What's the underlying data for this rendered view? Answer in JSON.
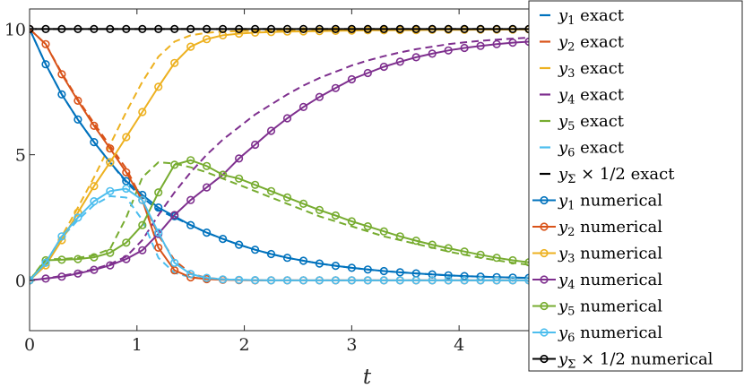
{
  "chart_data": {
    "type": "line",
    "title": "",
    "xlabel": "t",
    "ylabel": "",
    "xlim": [
      0,
      4.7
    ],
    "ylim": [
      -2,
      10.8
    ],
    "xticks": [
      0,
      1,
      2,
      3,
      4
    ],
    "xtick_labels": [
      "0",
      "1",
      "2",
      "3",
      "4"
    ],
    "yticks": [
      0,
      5,
      10
    ],
    "ytick_labels": [
      "0",
      "5",
      "10"
    ],
    "grid": false,
    "legend_position": "right",
    "legend": [
      {
        "symbol": "y",
        "sub": "1",
        "suffix": " exact",
        "color": "#0072BD",
        "style": "dashed"
      },
      {
        "symbol": "y",
        "sub": "2",
        "suffix": " exact",
        "color": "#D95319",
        "style": "dashed"
      },
      {
        "symbol": "y",
        "sub": "3",
        "suffix": " exact",
        "color": "#EDB120",
        "style": "dashed"
      },
      {
        "symbol": "y",
        "sub": "4",
        "suffix": " exact",
        "color": "#7E2F8E",
        "style": "dashed"
      },
      {
        "symbol": "y",
        "sub": "5",
        "suffix": " exact",
        "color": "#77AC30",
        "style": "dashed"
      },
      {
        "symbol": "y",
        "sub": "6",
        "suffix": " exact",
        "color": "#4DBEEE",
        "style": "dashed"
      },
      {
        "symbol": "y",
        "sub": "Σ",
        "suffix": " × 1/2 exact",
        "color": "#000000",
        "style": "dashed"
      },
      {
        "symbol": "y",
        "sub": "1",
        "suffix": " numerical",
        "color": "#0072BD",
        "style": "marker"
      },
      {
        "symbol": "y",
        "sub": "2",
        "suffix": " numerical",
        "color": "#D95319",
        "style": "marker"
      },
      {
        "symbol": "y",
        "sub": "3",
        "suffix": " numerical",
        "color": "#EDB120",
        "style": "marker"
      },
      {
        "symbol": "y",
        "sub": "4",
        "suffix": " numerical",
        "color": "#7E2F8E",
        "style": "marker"
      },
      {
        "symbol": "y",
        "sub": "5",
        "suffix": " numerical",
        "color": "#77AC30",
        "style": "marker"
      },
      {
        "symbol": "y",
        "sub": "6",
        "suffix": " numerical",
        "color": "#4DBEEE",
        "style": "marker"
      },
      {
        "symbol": "y",
        "sub": "Σ",
        "suffix": " × 1/2 numerical",
        "color": "#000000",
        "style": "marker"
      }
    ],
    "x": [
      0.0,
      0.15,
      0.3,
      0.45,
      0.6,
      0.75,
      0.9,
      1.05,
      1.2,
      1.35,
      1.5,
      1.65,
      1.8,
      1.95,
      2.1,
      2.25,
      2.4,
      2.55,
      2.7,
      2.85,
      3.0,
      3.15,
      3.3,
      3.45,
      3.6,
      3.75,
      3.9,
      4.05,
      4.2,
      4.35,
      4.5,
      4.65
    ],
    "series": [
      {
        "name": "y1 exact",
        "color": "#0072BD",
        "style": "dashed",
        "values": [
          10.0,
          8.6,
          7.4,
          6.4,
          5.5,
          4.7,
          3.9,
          3.3,
          2.8,
          2.5,
          2.2,
          1.9,
          1.65,
          1.42,
          1.22,
          1.05,
          0.9,
          0.78,
          0.67,
          0.58,
          0.5,
          0.43,
          0.37,
          0.32,
          0.28,
          0.24,
          0.2,
          0.17,
          0.15,
          0.13,
          0.11,
          0.1
        ]
      },
      {
        "name": "y2 exact",
        "color": "#D95319",
        "style": "dashed",
        "values": [
          10.0,
          9.4,
          8.25,
          7.2,
          6.25,
          5.35,
          4.45,
          3.2,
          1.8,
          0.8,
          0.28,
          0.1,
          0.05,
          0.02,
          0.01,
          0.0,
          0.0,
          0.0,
          0.0,
          0.0,
          0.0,
          0.0,
          0.0,
          0.0,
          0.0,
          0.0,
          0.0,
          0.0,
          0.0,
          0.0,
          0.0,
          0.0
        ]
      },
      {
        "name": "y3 exact",
        "color": "#EDB120",
        "style": "dashed",
        "values": [
          0.0,
          0.7,
          1.75,
          2.9,
          4.1,
          5.4,
          6.7,
          7.9,
          8.9,
          9.5,
          9.75,
          9.85,
          9.9,
          9.92,
          9.93,
          9.94,
          9.95,
          9.95,
          9.96,
          9.96,
          9.97,
          9.97,
          9.97,
          9.98,
          9.98,
          9.98,
          9.98,
          9.99,
          9.99,
          9.99,
          9.99,
          9.99
        ]
      },
      {
        "name": "y4 exact",
        "color": "#7E2F8E",
        "style": "dashed",
        "values": [
          0.0,
          0.08,
          0.18,
          0.3,
          0.45,
          0.65,
          0.95,
          1.6,
          2.6,
          3.5,
          4.3,
          5.0,
          5.6,
          6.1,
          6.6,
          7.0,
          7.4,
          7.75,
          8.05,
          8.3,
          8.55,
          8.75,
          8.92,
          9.07,
          9.2,
          9.3,
          9.4,
          9.47,
          9.53,
          9.58,
          9.62,
          9.66
        ]
      },
      {
        "name": "y5 exact",
        "color": "#77AC30",
        "style": "dashed",
        "values": [
          0.0,
          0.85,
          0.85,
          0.9,
          1.0,
          1.25,
          2.5,
          4.1,
          4.7,
          4.65,
          4.5,
          4.3,
          4.05,
          3.8,
          3.55,
          3.3,
          3.05,
          2.8,
          2.55,
          2.35,
          2.15,
          1.95,
          1.75,
          1.6,
          1.45,
          1.3,
          1.15,
          1.02,
          0.9,
          0.8,
          0.7,
          0.62
        ]
      },
      {
        "name": "y6 exact",
        "color": "#4DBEEE",
        "style": "dashed",
        "values": [
          0.0,
          0.7,
          1.7,
          2.4,
          3.0,
          3.35,
          3.3,
          2.4,
          0.9,
          0.3,
          0.12,
          0.06,
          0.03,
          0.02,
          0.01,
          0.0,
          0.0,
          0.0,
          0.0,
          0.0,
          0.0,
          0.0,
          0.0,
          0.0,
          0.0,
          0.0,
          0.0,
          0.0,
          0.0,
          0.0,
          0.0,
          0.0
        ]
      },
      {
        "name": "ySigma x 1/2 exact",
        "color": "#000000",
        "style": "dashed",
        "values": [
          10.0,
          10.0,
          10.0,
          10.0,
          10.0,
          10.0,
          10.0,
          10.0,
          10.0,
          10.0,
          10.0,
          10.0,
          10.0,
          10.0,
          10.0,
          10.0,
          10.0,
          10.0,
          10.0,
          10.0,
          10.0,
          10.0,
          10.0,
          10.0,
          10.0,
          10.0,
          10.0,
          10.0,
          10.0,
          10.0,
          10.0,
          10.0
        ]
      },
      {
        "name": "y1 numerical",
        "color": "#0072BD",
        "style": "marker",
        "values": [
          10.0,
          8.6,
          7.4,
          6.4,
          5.5,
          4.7,
          3.95,
          3.4,
          2.9,
          2.55,
          2.2,
          1.9,
          1.65,
          1.42,
          1.22,
          1.05,
          0.9,
          0.78,
          0.67,
          0.58,
          0.5,
          0.43,
          0.37,
          0.32,
          0.28,
          0.24,
          0.2,
          0.17,
          0.15,
          0.13,
          0.11,
          0.1
        ]
      },
      {
        "name": "y2 numerical",
        "color": "#D95319",
        "style": "marker",
        "values": [
          10.0,
          9.4,
          8.2,
          7.15,
          6.15,
          5.25,
          4.3,
          3.2,
          1.3,
          0.4,
          0.12,
          0.05,
          0.02,
          0.01,
          0.0,
          0.0,
          0.0,
          0.0,
          0.0,
          0.0,
          0.0,
          0.0,
          0.0,
          0.0,
          0.0,
          0.0,
          0.0,
          0.0,
          0.0,
          0.0,
          0.0,
          0.0
        ]
      },
      {
        "name": "y3 numerical",
        "color": "#EDB120",
        "style": "marker",
        "values": [
          0.0,
          0.6,
          1.6,
          2.7,
          3.75,
          4.7,
          5.7,
          6.7,
          7.7,
          8.65,
          9.3,
          9.6,
          9.75,
          9.82,
          9.86,
          9.88,
          9.9,
          9.91,
          9.92,
          9.93,
          9.94,
          9.95,
          9.95,
          9.96,
          9.96,
          9.97,
          9.97,
          9.97,
          9.98,
          9.98,
          9.98,
          9.99
        ]
      },
      {
        "name": "y4 numerical",
        "color": "#7E2F8E",
        "style": "marker",
        "values": [
          0.0,
          0.07,
          0.15,
          0.27,
          0.42,
          0.6,
          0.85,
          1.2,
          1.85,
          2.6,
          3.2,
          3.7,
          4.2,
          4.85,
          5.4,
          5.95,
          6.45,
          6.9,
          7.3,
          7.65,
          8.0,
          8.25,
          8.5,
          8.7,
          8.88,
          9.02,
          9.15,
          9.25,
          9.33,
          9.4,
          9.46,
          9.5
        ]
      },
      {
        "name": "y5 numerical",
        "color": "#77AC30",
        "style": "marker",
        "values": [
          0.0,
          0.8,
          0.82,
          0.85,
          0.92,
          1.1,
          1.5,
          2.2,
          3.5,
          4.6,
          4.78,
          4.55,
          4.2,
          4.05,
          3.8,
          3.55,
          3.3,
          3.05,
          2.8,
          2.58,
          2.35,
          2.15,
          1.95,
          1.75,
          1.58,
          1.42,
          1.28,
          1.15,
          1.02,
          0.9,
          0.8,
          0.72
        ]
      },
      {
        "name": "y6 numerical",
        "color": "#4DBEEE",
        "style": "marker",
        "values": [
          0.0,
          0.7,
          1.75,
          2.5,
          3.15,
          3.55,
          3.65,
          3.2,
          1.9,
          0.7,
          0.25,
          0.1,
          0.04,
          0.02,
          0.01,
          0.0,
          0.0,
          0.0,
          0.0,
          0.0,
          0.0,
          0.0,
          0.0,
          0.0,
          0.0,
          0.0,
          0.0,
          0.0,
          0.0,
          0.0,
          0.0,
          0.0
        ]
      },
      {
        "name": "ySigma x 1/2 numerical",
        "color": "#000000",
        "style": "marker",
        "values": [
          10.0,
          10.0,
          10.0,
          10.0,
          10.0,
          10.0,
          10.0,
          10.0,
          10.0,
          10.0,
          10.0,
          10.0,
          10.0,
          10.0,
          10.0,
          10.0,
          10.0,
          10.0,
          10.0,
          10.0,
          10.0,
          10.0,
          10.0,
          10.0,
          10.0,
          10.0,
          10.0,
          10.0,
          10.0,
          10.0,
          10.0,
          10.0
        ]
      }
    ]
  }
}
